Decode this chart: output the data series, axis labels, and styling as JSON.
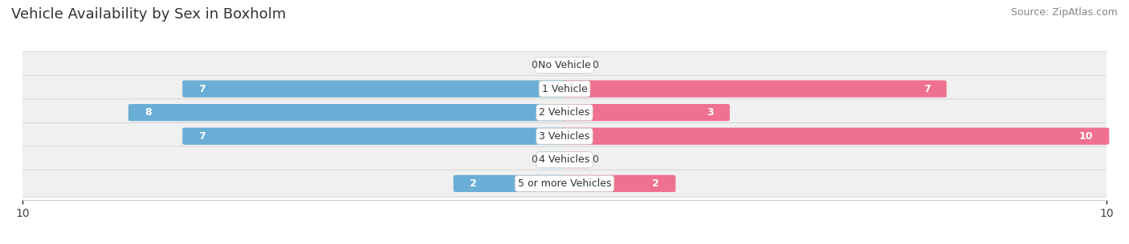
{
  "title": "Vehicle Availability by Sex in Boxholm",
  "source": "Source: ZipAtlas.com",
  "categories": [
    "No Vehicle",
    "1 Vehicle",
    "2 Vehicles",
    "3 Vehicles",
    "4 Vehicles",
    "5 or more Vehicles"
  ],
  "male_values": [
    0,
    7,
    8,
    7,
    0,
    2
  ],
  "female_values": [
    0,
    7,
    3,
    10,
    0,
    2
  ],
  "male_color": "#6aaed6",
  "female_color": "#f07090",
  "male_light": "#b8d4ea",
  "female_light": "#f5b8c8",
  "row_bg_color": "#f0f0f0",
  "row_bg_dark": "#e8e8ec",
  "max_val": 10,
  "title_fontsize": 13,
  "source_fontsize": 9,
  "label_fontsize": 9,
  "cat_fontsize": 9,
  "tick_fontsize": 10
}
